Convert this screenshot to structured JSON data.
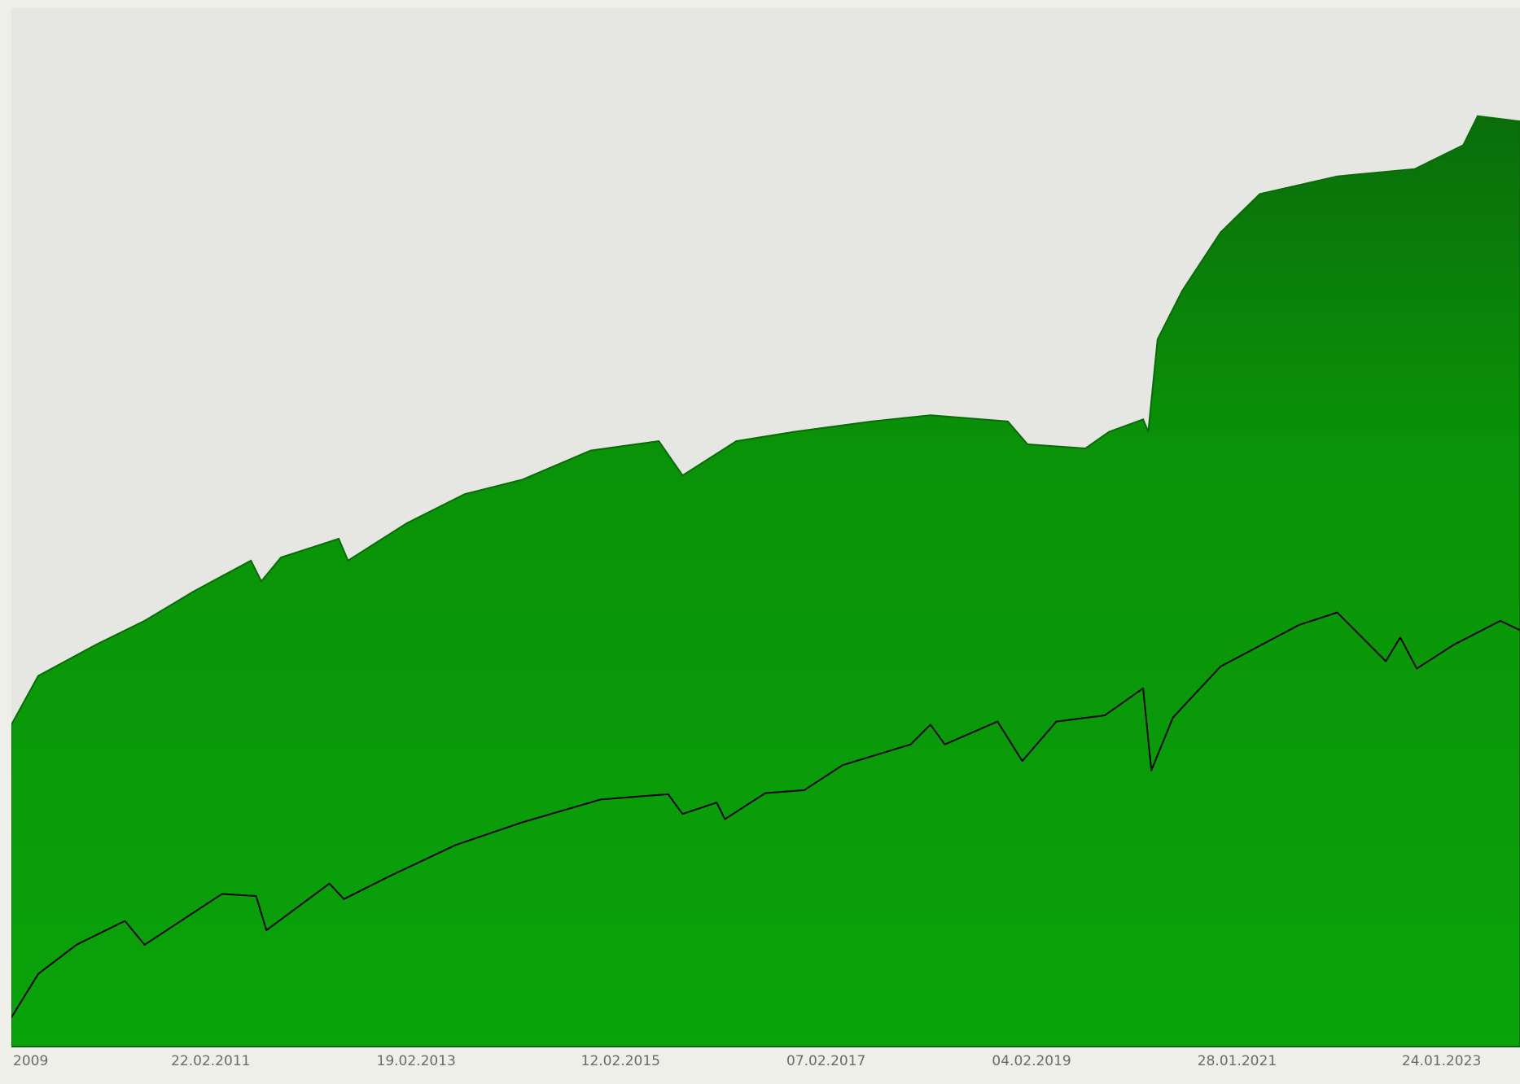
{
  "chart_data": {
    "type": "area",
    "xlim": [
      2009.21,
      2023.82
    ],
    "ylim": [
      0,
      100
    ],
    "xticks": [
      {
        "value": 2009.15,
        "label": "2009"
      },
      {
        "value": 2011.14,
        "label": "22.02.2011"
      },
      {
        "value": 2013.13,
        "label": "19.02.2013"
      },
      {
        "value": 2015.11,
        "label": "12.02.2015"
      },
      {
        "value": 2017.1,
        "label": "07.02.2017"
      },
      {
        "value": 2019.09,
        "label": "04.02.2019"
      },
      {
        "value": 2021.08,
        "label": "28.01.2021"
      },
      {
        "value": 2023.06,
        "label": "24.01.2023"
      }
    ],
    "grid": false,
    "series": [
      {
        "type": "area",
        "color": "#0a9e0a",
        "x": [
          2009.21,
          2009.47,
          2010.03,
          2010.5,
          2010.97,
          2011.53,
          2011.63,
          2011.82,
          2012.38,
          2012.47,
          2013.04,
          2013.6,
          2014.16,
          2014.82,
          2015.48,
          2015.71,
          2016.23,
          2016.79,
          2017.54,
          2018.11,
          2018.86,
          2019.05,
          2019.61,
          2019.84,
          2020.17,
          2020.22,
          2020.31,
          2020.55,
          2020.92,
          2021.3,
          2022.05,
          2022.8,
          2023.27,
          2023.41,
          2023.82
        ],
        "values": [
          31.0,
          35.7,
          38.7,
          41.0,
          43.8,
          46.8,
          44.8,
          47.1,
          48.9,
          46.8,
          50.4,
          53.2,
          54.6,
          57.4,
          58.3,
          55.0,
          58.3,
          59.2,
          60.2,
          60.8,
          60.2,
          58.0,
          57.6,
          59.2,
          60.4,
          59.2,
          68.1,
          72.8,
          78.4,
          82.1,
          83.8,
          84.5,
          86.8,
          89.6,
          89.1
        ]
      },
      {
        "type": "line",
        "color": "#000000",
        "x": [
          2009.21,
          2009.47,
          2009.84,
          2010.31,
          2010.5,
          2011.25,
          2011.58,
          2011.68,
          2012.29,
          2012.43,
          2012.85,
          2013.51,
          2014.16,
          2014.92,
          2015.57,
          2015.71,
          2016.04,
          2016.12,
          2016.51,
          2016.89,
          2017.26,
          2017.92,
          2018.11,
          2018.25,
          2018.76,
          2019.0,
          2019.33,
          2019.8,
          2020.17,
          2020.25,
          2020.46,
          2020.92,
          2021.68,
          2022.05,
          2022.52,
          2022.66,
          2022.82,
          2023.18,
          2023.63,
          2023.82
        ],
        "values": [
          2.8,
          7.0,
          9.8,
          12.1,
          9.8,
          14.7,
          14.5,
          11.2,
          15.7,
          14.2,
          16.3,
          19.4,
          21.6,
          23.8,
          24.3,
          22.4,
          23.5,
          21.9,
          24.4,
          24.7,
          27.1,
          29.1,
          31.0,
          29.1,
          31.3,
          27.5,
          31.3,
          31.9,
          34.5,
          26.6,
          31.7,
          36.6,
          40.6,
          41.8,
          37.1,
          39.4,
          36.4,
          38.7,
          41.0,
          40.1
        ]
      }
    ]
  }
}
